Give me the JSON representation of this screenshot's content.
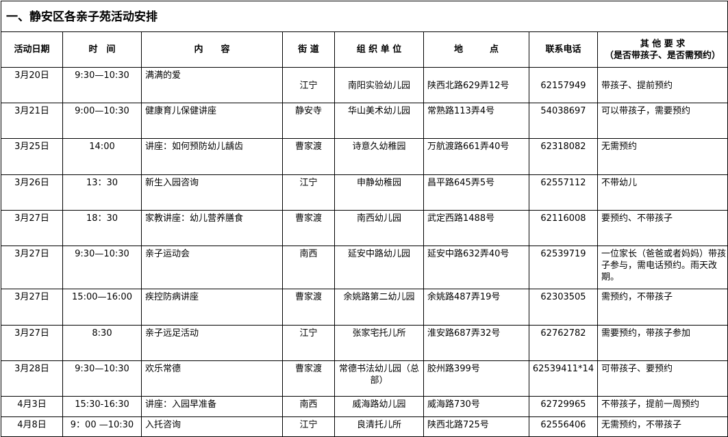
{
  "title": "一、静安区各亲子苑活动安排",
  "headers": [
    "活动日期",
    "时　间",
    "内　　容",
    "街 道",
    "组 织 单 位",
    "地　　　点",
    "联系电话",
    "其 他 要 求",
    "（是否带孩子、是否需预约）"
  ],
  "rows": [
    {
      "date": "3月20日",
      "time": "9:30—10:30",
      "content": "满满的爱",
      "street": "江宁",
      "org": "南阳实验幼儿园",
      "place": "陕西北路629弄12号",
      "phone": "62157949",
      "req": "带孩子、提前预约"
    },
    {
      "date": "3月21日",
      "time": "9:00—10:30",
      "content": "健康育儿保健讲座",
      "street": "静安寺",
      "org": "华山美术幼儿园",
      "place": "常熟路113弄4号",
      "phone": "54038697",
      "req": "可以带孩子，需要预约"
    },
    {
      "date": "3月25日",
      "time": "14:00",
      "content": "讲座：如何预防幼儿龋齿",
      "street": "曹家渡",
      "org": "诗意久幼稚园",
      "place": "万航渡路661弄40号",
      "phone": "62318082",
      "req": "无需预约"
    },
    {
      "date": "3月26日",
      "time": "13：30",
      "content": "新生入园咨询",
      "street": "江宁",
      "org": "申静幼稚园",
      "place": "昌平路645弄5号",
      "phone": "62557112",
      "req": "不带幼儿"
    },
    {
      "date": "3月27日",
      "time": "18：30",
      "content": "家教讲座：幼儿营养膳食",
      "street": "曹家渡",
      "org": "南西幼儿园",
      "place": "武定西路1488号",
      "phone": "62116008",
      "req": "要预约、不带孩子"
    },
    {
      "date": "3月27日",
      "time": "9:30—10:30",
      "content": "亲子运动会",
      "street": "南西",
      "org": "延安中路幼儿园",
      "place": "延安中路632弄40号",
      "phone": "62539719",
      "req": "一位家长（爸爸或者妈妈）带孩子参与，需电话预约。雨天改期。"
    },
    {
      "date": "3月27日",
      "time": "15:00—16:00",
      "content": "疾控防病讲座",
      "street": "曹家渡",
      "org": "余姚路第二幼儿园",
      "place": "余姚路487弄19号",
      "phone": "62303505",
      "req": "需预约，不带孩子"
    },
    {
      "date": "3月27日",
      "time": "8:30",
      "content": "亲子远足活动",
      "street": "江宁",
      "org": "张家宅托儿所",
      "place": "淮安路687弄32号",
      "phone": "62762782",
      "req": "需要预约，带孩子参加"
    },
    {
      "date": "3月28日",
      "time": "9:30—10:30",
      "content": "欢乐常德",
      "street": "曹家渡",
      "org": "常德书法幼儿园（总部）",
      "place": "胶州路399号",
      "phone": "62539411*14",
      "req": "可带孩子、要预约"
    },
    {
      "date": "4月3日",
      "time": "15:30-16:30",
      "content": "讲座：入园早准备",
      "street": "南西",
      "org": "威海路幼儿园",
      "place": "威海路730号",
      "phone": "62729965",
      "req": "不带孩子，提前一周预约"
    },
    {
      "date": "4月8日",
      "time": "9：00 —10:30",
      "content": "入托咨询",
      "street": "江宁",
      "org": "良清托儿所",
      "place": "陕西北路725号",
      "phone": "62556406",
      "req": "无需预约，不带孩子"
    }
  ]
}
